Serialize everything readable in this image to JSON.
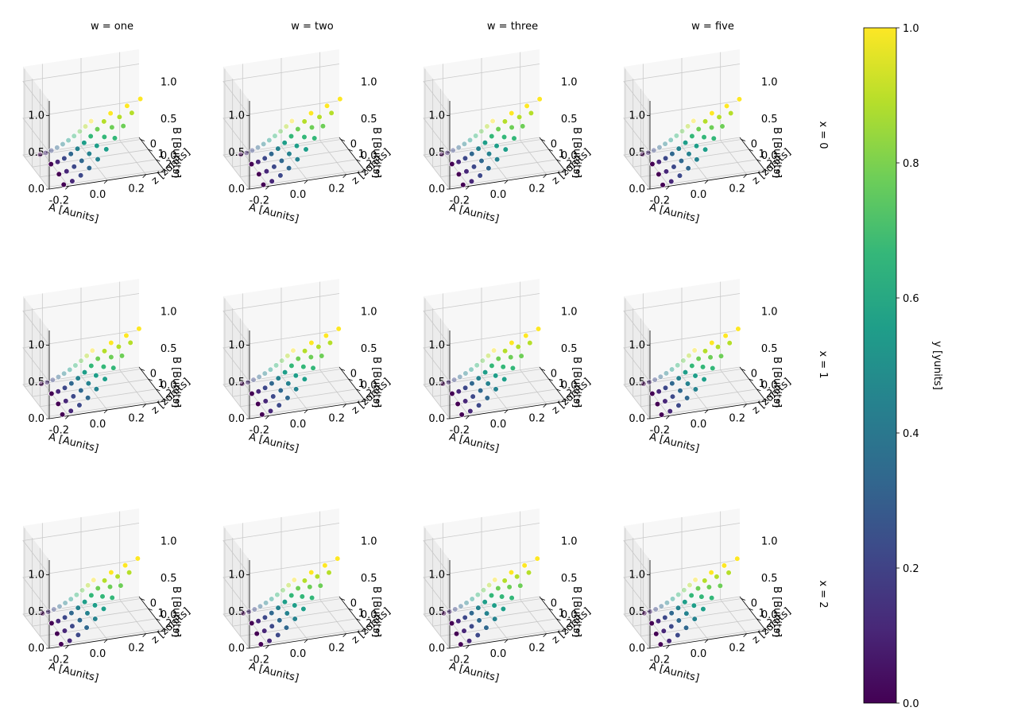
{
  "chart_data": {
    "type": "scatter",
    "projection": "3d",
    "column_facet": {
      "variable": "w",
      "values": [
        "one",
        "two",
        "three",
        "five"
      ]
    },
    "row_facet": {
      "variable": "x",
      "values": [
        "0",
        "1",
        "2"
      ]
    },
    "column_titles": [
      "w = one",
      "w = two",
      "w = three",
      "w = five"
    ],
    "row_titles": [
      "x = 0",
      "x = 1",
      "x = 2"
    ],
    "xlabel": "A [Aunits]",
    "ylabel": "z [zunits]",
    "zlabel": "B [Bunits]",
    "x_ticks": [
      "-0.2",
      "0.0",
      "0.2"
    ],
    "y_ticks": [
      "0",
      "1",
      "2",
      "3"
    ],
    "z_ticks": [
      "0.0",
      "0.5",
      "1.0"
    ],
    "xlim": [
      -0.3,
      0.3
    ],
    "ylim": [
      -0.2,
      3.2
    ],
    "zlim": [
      0,
      1.2
    ],
    "colorbar": {
      "label": "y [yunits]",
      "ticks": [
        "0.0",
        "0.2",
        "0.4",
        "0.6",
        "0.8",
        "1.0"
      ],
      "range": [
        0,
        1
      ],
      "colormap": "viridis"
    },
    "series_note": "Each panel: z in 0,1,2,3; within each z, 10 points with A from -0.25 to 0.25, B = y from 0 to 1 (color = y)"
  },
  "colormap_stops": [
    "#440154",
    "#482878",
    "#3e4989",
    "#31688e",
    "#26828e",
    "#1f9e89",
    "#35b779",
    "#6ece58",
    "#b5de2b",
    "#fde725"
  ]
}
